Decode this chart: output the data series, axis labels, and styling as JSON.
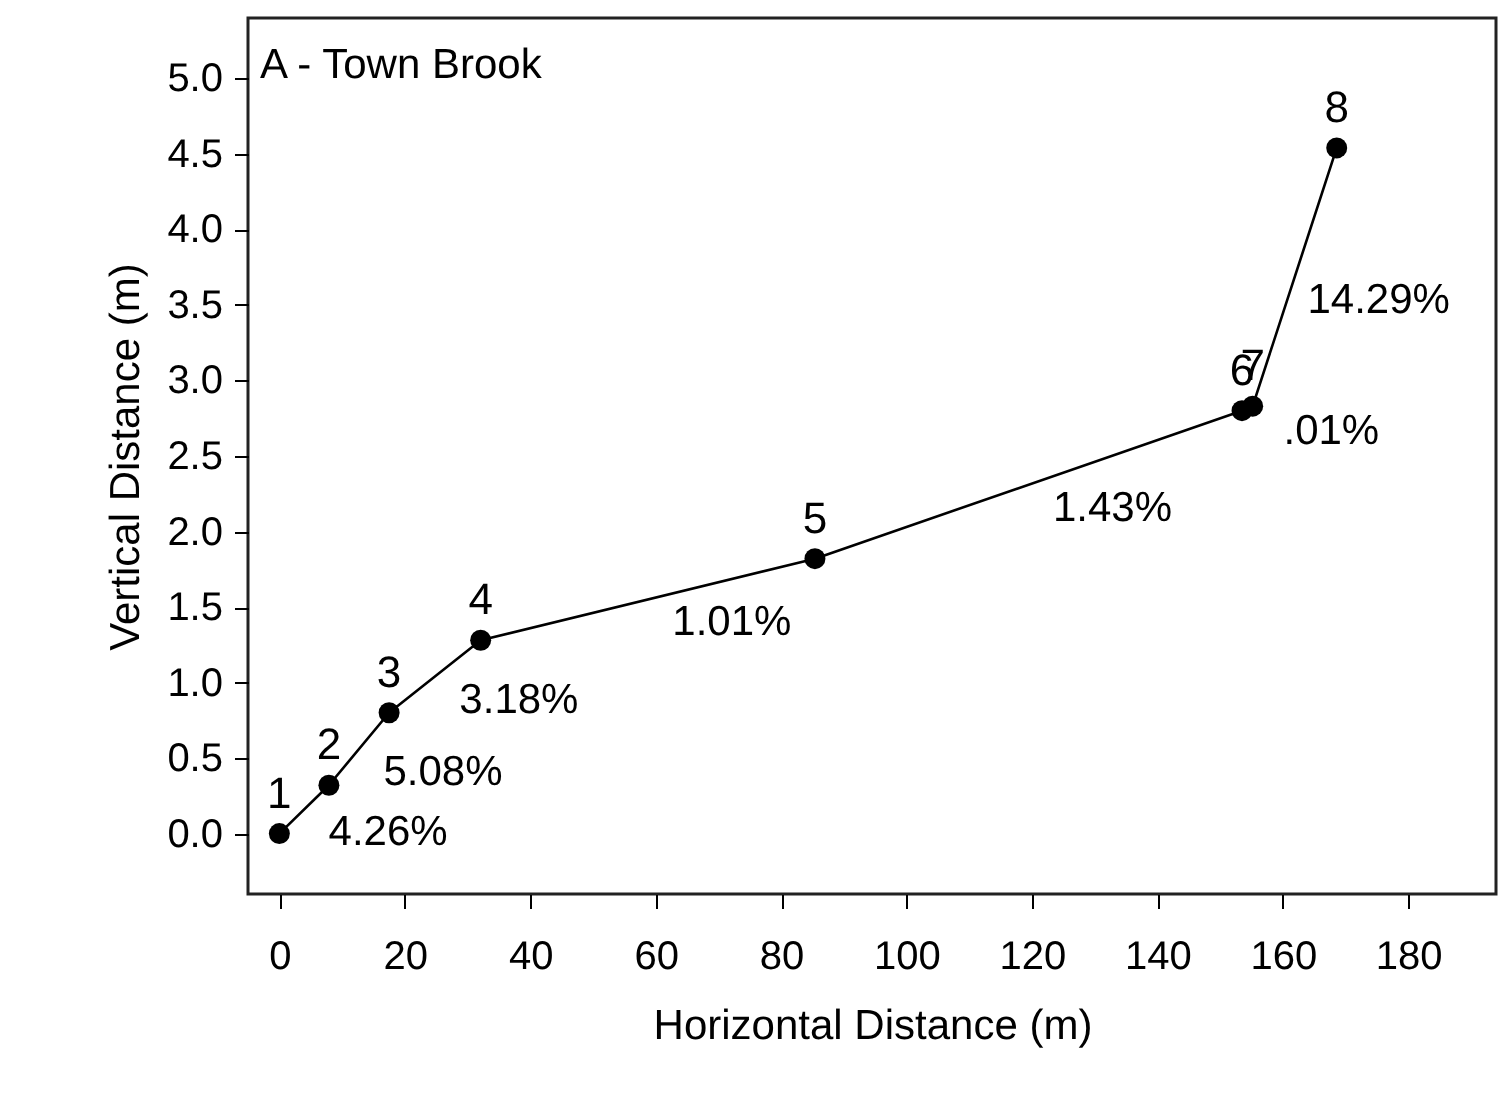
{
  "chart_data": {
    "type": "line",
    "title": "A - Town Brook",
    "xlabel": "Horizontal Distance (m)",
    "ylabel": "Vertical Distance (m)",
    "x": [
      0,
      7.9,
      17.5,
      32.1,
      85.4,
      153.5,
      155.2,
      168.6
    ],
    "series": [
      {
        "color": "#000000",
        "values": [
          0,
          0.32,
          0.8,
          1.28,
          1.82,
          2.8,
          2.83,
          4.54
        ]
      }
    ],
    "xlim": [
      -5,
      194
    ],
    "xticks": [
      0,
      20,
      40,
      60,
      80,
      100,
      120,
      140,
      160,
      180
    ],
    "ylim": [
      -0.4,
      5.4
    ],
    "yticks": [
      {
        "value": 0,
        "label": "0.0"
      },
      {
        "value": 0.5,
        "label": "0.5"
      },
      {
        "value": 1,
        "label": "1.0"
      },
      {
        "value": 1.5,
        "label": "1.5"
      },
      {
        "value": 2,
        "label": "2.0"
      },
      {
        "value": 2.5,
        "label": "2.5"
      },
      {
        "value": 3,
        "label": "3.0"
      },
      {
        "value": 3.5,
        "label": "3.5"
      },
      {
        "value": 4,
        "label": "4.0"
      },
      {
        "value": 4.5,
        "label": "4.5"
      },
      {
        "value": 5,
        "label": "5.0"
      }
    ],
    "annotations": [
      {
        "text": "1",
        "x": 0,
        "y": 0
      },
      {
        "text": "2",
        "x": 7.9,
        "y": 0.32
      },
      {
        "text": "3",
        "x": 17.5,
        "y": 0.8
      },
      {
        "text": "4",
        "x": 32.1,
        "y": 1.28
      },
      {
        "text": "5",
        "x": 85.4,
        "y": 1.82
      },
      {
        "text": "6",
        "x": 153.5,
        "y": 2.8
      },
      {
        "text": "7",
        "x": 155.2,
        "y": 2.83
      },
      {
        "text": "8",
        "x": 168.6,
        "y": 4.54
      },
      "4.26%",
      "5.08%",
      "3.18%",
      "1.01%",
      "1.43%",
      ".01%",
      "14.29%"
    ],
    "grid": false,
    "marker": "circle",
    "line_style": "solid"
  }
}
